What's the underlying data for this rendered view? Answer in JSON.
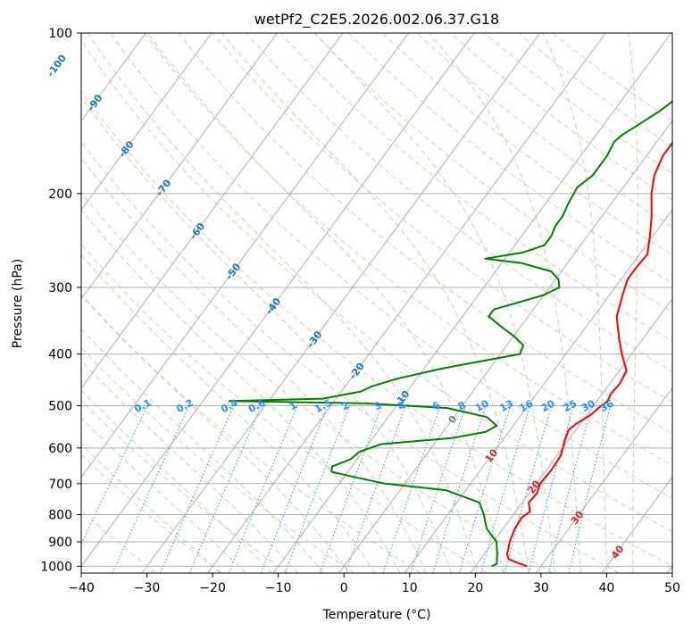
{
  "chart_data": {
    "type": "line",
    "title": "wetPf2_C2E5.2026.002.06.37.G18",
    "xlabel": "Temperature (°C)",
    "ylabel": "Pressure (hPa)",
    "xlim": [
      -40,
      50
    ],
    "ylim": [
      1030,
      100
    ],
    "y_scale": "log",
    "grid": true,
    "x_ticks": [
      "−40",
      "−30",
      "−20",
      "−10",
      "0",
      "10",
      "20",
      "30",
      "40",
      "50"
    ],
    "x_tick_values": [
      -40,
      -30,
      -20,
      -10,
      0,
      10,
      20,
      30,
      40,
      50
    ],
    "y_ticks": [
      "100",
      "200",
      "300",
      "400",
      "500",
      "600",
      "700",
      "800",
      "900",
      "1000"
    ],
    "y_tick_values": [
      100,
      200,
      300,
      400,
      500,
      600,
      700,
      800,
      900,
      1000
    ],
    "isotherm_labels": [
      {
        "text": "-100",
        "value": -100,
        "color": "#1f77b4"
      },
      {
        "text": "-90",
        "value": -90,
        "color": "#1f77b4"
      },
      {
        "text": "-80",
        "value": -80,
        "color": "#1f77b4"
      },
      {
        "text": "-70",
        "value": -70,
        "color": "#1f77b4"
      },
      {
        "text": "-60",
        "value": -60,
        "color": "#1f77b4"
      },
      {
        "text": "-50",
        "value": -50,
        "color": "#1f77b4"
      },
      {
        "text": "-40",
        "value": -40,
        "color": "#1f77b4"
      },
      {
        "text": "-30",
        "value": -30,
        "color": "#1f77b4"
      },
      {
        "text": "-20",
        "value": -20,
        "color": "#1f77b4"
      },
      {
        "text": "-10",
        "value": -10,
        "color": "#1f77b4"
      },
      {
        "text": "0",
        "value": 0,
        "color": "#808080"
      },
      {
        "text": "10",
        "value": 10,
        "color": "#d62728"
      },
      {
        "text": "20",
        "value": 20,
        "color": "#d62728"
      },
      {
        "text": "30",
        "value": 30,
        "color": "#d62728"
      },
      {
        "text": "40",
        "value": 40,
        "color": "#d62728"
      }
    ],
    "mixing_ratio_labels": [
      "0.1",
      "0.2",
      "0.4",
      "0.6",
      "1",
      "1.5",
      "2",
      "3",
      "4",
      "6",
      "8",
      "10",
      "13",
      "16",
      "20",
      "25",
      "30",
      "36"
    ],
    "mixing_ratio_values": [
      0.1,
      0.2,
      0.4,
      0.6,
      1,
      1.5,
      2,
      3,
      4,
      6,
      8,
      10,
      13,
      16,
      20,
      25,
      30,
      36
    ],
    "series": [
      {
        "color": "#ff0000",
        "points": [
          [
            1000,
            27.9
          ],
          [
            985,
            26
          ],
          [
            970,
            24.3
          ],
          [
            950,
            23.5
          ],
          [
            900,
            22.5
          ],
          [
            850,
            21.8
          ],
          [
            810,
            21.6
          ],
          [
            790,
            22.2
          ],
          [
            760,
            21.0
          ],
          [
            730,
            21.2
          ],
          [
            700,
            20.6
          ],
          [
            660,
            20.8
          ],
          [
            620,
            20.6
          ],
          [
            580,
            19.5
          ],
          [
            555,
            18.9
          ],
          [
            540,
            19.4
          ],
          [
            520,
            20.6
          ],
          [
            505,
            21.0
          ],
          [
            490,
            21.6
          ],
          [
            475,
            21.3
          ],
          [
            455,
            21.5
          ],
          [
            430,
            21.1
          ],
          [
            400,
            18.5
          ],
          [
            370,
            16.0
          ],
          [
            340,
            13.5
          ],
          [
            310,
            12.0
          ],
          [
            290,
            11.0
          ],
          [
            275,
            11.0
          ],
          [
            260,
            11.2
          ],
          [
            240,
            9.5
          ],
          [
            220,
            7.5
          ],
          [
            200,
            5.0
          ],
          [
            185,
            3.4
          ],
          [
            170,
            2.5
          ],
          [
            160,
            2.5
          ],
          [
            150,
            2.8
          ],
          [
            140,
            2.3
          ],
          [
            130,
            1.5
          ],
          [
            120,
            0.0
          ],
          [
            110,
            1.0
          ],
          [
            105,
            1.8
          ],
          [
            100,
            2.5
          ]
        ]
      },
      {
        "color": "#008000",
        "points": [
          [
            1000,
            22.5
          ],
          [
            990,
            23
          ],
          [
            950,
            22
          ],
          [
            900,
            20.5
          ],
          [
            850,
            17.5
          ],
          [
            800,
            15.5
          ],
          [
            760,
            13.5
          ],
          [
            720,
            7.0
          ],
          [
            700,
            -3.0
          ],
          [
            680,
            -8.5
          ],
          [
            665,
            -12.5
          ],
          [
            650,
            -13.0
          ],
          [
            630,
            -11.0
          ],
          [
            610,
            -10.5
          ],
          [
            590,
            -8.0
          ],
          [
            575,
            2.0
          ],
          [
            560,
            6.5
          ],
          [
            545,
            7.5
          ],
          [
            525,
            5.0
          ],
          [
            505,
            -2.0
          ],
          [
            495,
            -15.0
          ],
          [
            490,
            -36.0
          ],
          [
            485,
            -22.0
          ],
          [
            470,
            -17.0
          ],
          [
            460,
            -16.0
          ],
          [
            445,
            -13.0
          ],
          [
            425,
            -7.0
          ],
          [
            400,
            3.0
          ],
          [
            385,
            2.5
          ],
          [
            370,
            0.0
          ],
          [
            355,
            -3.0
          ],
          [
            340,
            -6.0
          ],
          [
            330,
            -6.0
          ],
          [
            320,
            -3.0
          ],
          [
            310,
            0.0
          ],
          [
            300,
            1.5
          ],
          [
            290,
            0.5
          ],
          [
            280,
            -1.5
          ],
          [
            270,
            -7.0
          ],
          [
            265,
            -13.0
          ],
          [
            258,
            -8.0
          ],
          [
            250,
            -5.5
          ],
          [
            240,
            -5.5
          ],
          [
            230,
            -6.0
          ],
          [
            220,
            -6.0
          ],
          [
            210,
            -6.5
          ],
          [
            195,
            -7.0
          ],
          [
            185,
            -6.0
          ],
          [
            170,
            -6.0
          ],
          [
            160,
            -6.5
          ],
          [
            155,
            -6.0
          ],
          [
            150,
            -5.0
          ],
          [
            140,
            -3.0
          ],
          [
            130,
            -1.5
          ],
          [
            120,
            -1.0
          ],
          [
            112,
            -1.0
          ],
          [
            106,
            -1.5
          ],
          [
            100,
            -1.5
          ]
        ]
      }
    ]
  }
}
